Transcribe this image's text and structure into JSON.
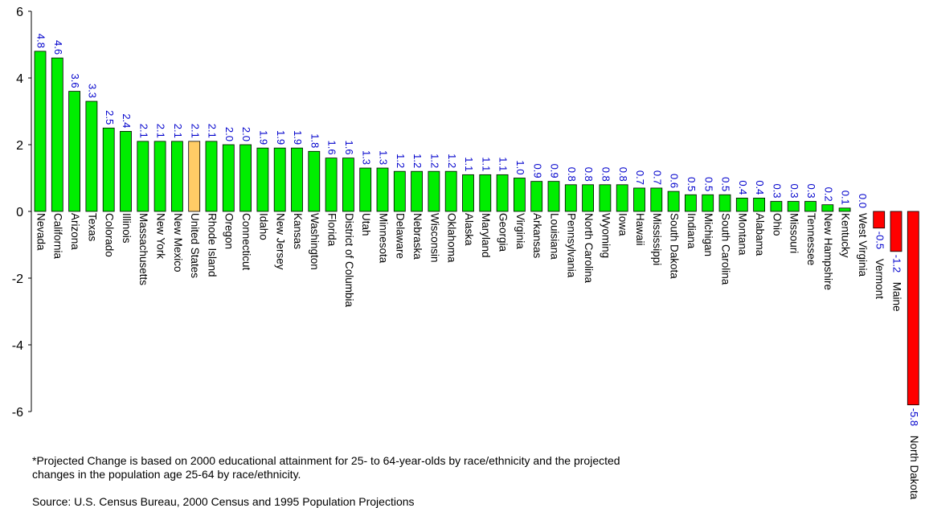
{
  "chart_data": {
    "type": "bar",
    "title": "",
    "xlabel": "",
    "ylabel": "",
    "ylim": [
      -6,
      6
    ],
    "yticks": [
      6,
      4,
      2,
      0,
      -2,
      -4,
      -6
    ],
    "categories": [
      "Nevada",
      "California",
      "Arizona",
      "Texas",
      "Colorado",
      "Illinois",
      "Massachusetts",
      "New York",
      "New Mexico",
      "United States",
      "Rhode Island",
      "Oregon",
      "Connecticut",
      "Idaho",
      "New Jersey",
      "Kansas",
      "Washington",
      "Florida",
      "District of Columbia",
      "Utah",
      "Minnesota",
      "Delaware",
      "Nebraska",
      "Wisconsin",
      "Oklahoma",
      "Alaska",
      "Maryland",
      "Georgia",
      "Virginia",
      "Arkansas",
      "Louisiana",
      "Pennsylvania",
      "North Carolina",
      "Wyoming",
      "Iowa",
      "Hawaii",
      "Mississippi",
      "South Dakota",
      "Indiana",
      "Michigan",
      "South Carolina",
      "Montana",
      "Alabama",
      "Ohio",
      "Missouri",
      "Tennessee",
      "New Hampshire",
      "Kentucky",
      "West Virginia",
      "Vermont",
      "Maine",
      "North Dakota"
    ],
    "values": [
      4.8,
      4.6,
      3.6,
      3.3,
      2.5,
      2.4,
      2.1,
      2.1,
      2.1,
      2.1,
      2.1,
      2.0,
      2.0,
      1.9,
      1.9,
      1.9,
      1.8,
      1.6,
      1.6,
      1.3,
      1.3,
      1.2,
      1.2,
      1.2,
      1.2,
      1.1,
      1.1,
      1.1,
      1.0,
      0.9,
      0.9,
      0.8,
      0.8,
      0.8,
      0.8,
      0.7,
      0.7,
      0.6,
      0.5,
      0.5,
      0.5,
      0.4,
      0.4,
      0.3,
      0.3,
      0.3,
      0.2,
      0.1,
      0.0,
      -0.5,
      -1.2,
      -5.8
    ],
    "value_labels": [
      "4.8",
      "4.6",
      "3.6",
      "3.3",
      "2.5",
      "2.4",
      "2.1",
      "2.1",
      "2.1",
      "2.1",
      "2.1",
      "2.0",
      "2.0",
      "1.9",
      "1.9",
      "1.9",
      "1.8",
      "1.6",
      "1.6",
      "1.3",
      "1.3",
      "1.2",
      "1.2",
      "1.2",
      "1.2",
      "1.1",
      "1.1",
      "1.1",
      "1.0",
      "0.9",
      "0.9",
      "0.8",
      "0.8",
      "0.8",
      "0.8",
      "0.7",
      "0.7",
      "0.6",
      "0.5",
      "0.5",
      "0.5",
      "0.4",
      "0.4",
      "0.3",
      "0.3",
      "0.3",
      "0.2",
      "0.1",
      "0.0",
      "-0.5",
      "-1.2",
      "-5.8"
    ],
    "highlight_category": "United States",
    "colors": {
      "positive": "#00ee00",
      "negative": "#ff0000",
      "highlight": "#ffcc66",
      "value_label": "#0000cc",
      "axis": "#000000"
    },
    "grid": false,
    "legend": "none"
  },
  "footnote": {
    "line1": "*Projected Change is based on 2000 educational attainment for 25- to 64-year-olds by race/ethnicity and the projected",
    "line2": " changes in the population age 25-64 by race/ethnicity.",
    "source": "Source:  U.S. Census Bureau, 2000 Census and 1995 Population Projections"
  }
}
